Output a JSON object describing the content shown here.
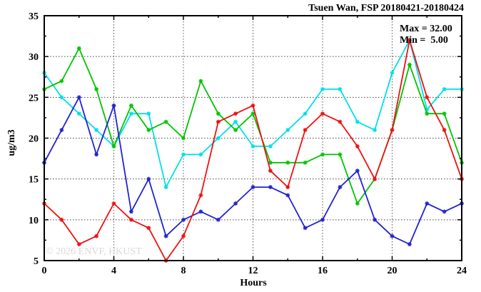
{
  "title": "Tsuen Wan, FSP 20180421-20180424",
  "annotation": {
    "max_label": "Max = 32.00",
    "min_label": "Min =  5.00"
  },
  "watermark": "© 2026 ENVF, HKUST",
  "chart_data": {
    "type": "line",
    "title": "Tsuen Wan, FSP 20180421-20180424",
    "xlabel": "Hours",
    "ylabel": "ug/m3",
    "xlim": [
      0,
      24
    ],
    "ylim": [
      5,
      35
    ],
    "xticks": [
      0,
      4,
      8,
      12,
      16,
      20,
      24
    ],
    "yticks": [
      5,
      10,
      15,
      20,
      25,
      30,
      35
    ],
    "x_minor_step": 2,
    "y_minor_step": 2.5,
    "grid": true,
    "legend_position": "none",
    "annotations": {
      "max": 32.0,
      "min": 5.0
    },
    "x": [
      0,
      1,
      2,
      3,
      4,
      5,
      6,
      7,
      8,
      9,
      10,
      11,
      12,
      13,
      14,
      15,
      16,
      17,
      18,
      19,
      20,
      21,
      22,
      23,
      24
    ],
    "series": [
      {
        "name": "cyan",
        "color": "#00dfe8",
        "values": [
          28,
          25,
          23,
          21,
          19,
          23,
          23,
          14,
          18,
          18,
          20,
          22,
          19,
          19,
          21,
          23,
          26,
          26,
          22,
          21,
          28,
          32,
          23.5,
          26,
          26
        ]
      },
      {
        "name": "green",
        "color": "#00c400",
        "values": [
          26,
          27,
          31,
          26,
          19,
          24,
          21,
          22,
          20,
          27,
          23,
          21,
          23,
          17,
          17,
          17,
          18,
          18,
          12,
          15,
          21,
          29,
          23,
          23,
          17
        ]
      },
      {
        "name": "blue",
        "color": "#2323d2",
        "values": [
          17,
          21,
          25,
          18,
          24,
          11,
          15,
          8,
          10,
          11,
          10,
          12,
          14,
          14,
          13,
          9,
          10,
          14,
          16,
          10,
          8,
          7,
          12,
          11,
          12
        ]
      },
      {
        "name": "red",
        "color": "#ee1111",
        "values": [
          12,
          10,
          7,
          8,
          12,
          10,
          9,
          5,
          8,
          13,
          22,
          23,
          24,
          16,
          14,
          21,
          23,
          22,
          19,
          15,
          21,
          32,
          25,
          21,
          15
        ]
      }
    ]
  }
}
